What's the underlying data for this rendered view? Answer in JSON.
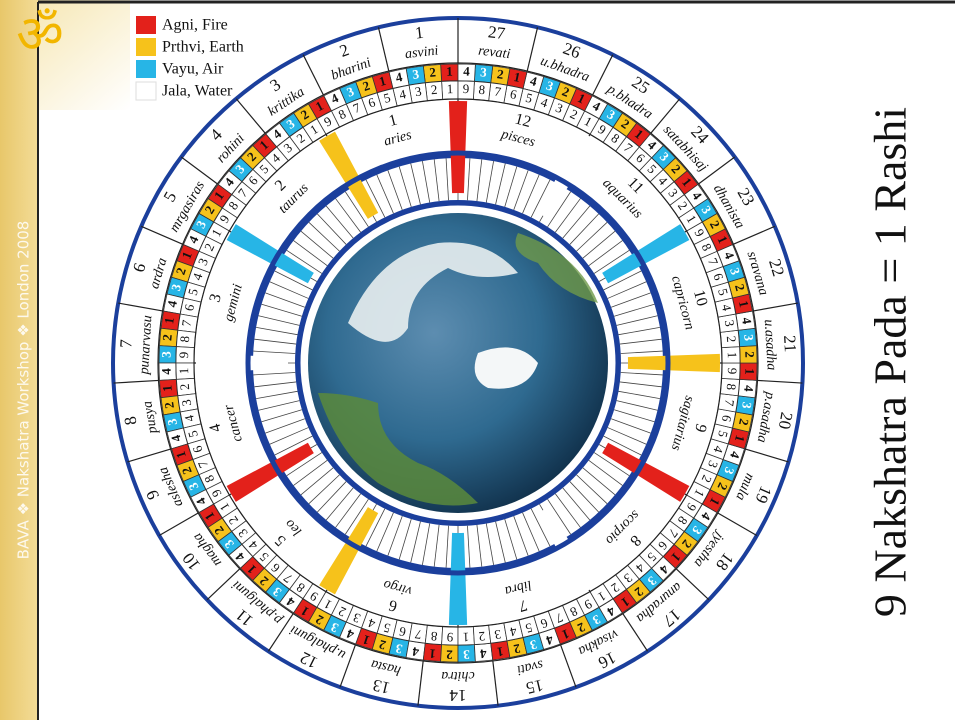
{
  "slide": {
    "title": "9 Nakshatra Pada = 1 Rashi",
    "side_text": "BAVA ❖ Nakshatra Workshop ❖ London 2008",
    "logo": "ॐ"
  },
  "legend": [
    {
      "label": "Agni, Fire",
      "color": "#e3211b"
    },
    {
      "label": "Prthvi, Earth",
      "color": "#f6c21b"
    },
    {
      "label": "Vayu, Air",
      "color": "#27b5e6"
    },
    {
      "label": "Jala, Water",
      "color": "#ffffff"
    }
  ],
  "nakshatras": [
    {
      "number": 1,
      "name": "asvini"
    },
    {
      "number": 2,
      "name": "bharini"
    },
    {
      "number": 3,
      "name": "krittika"
    },
    {
      "number": 4,
      "name": "rohini"
    },
    {
      "number": 5,
      "name": "mrgasiras"
    },
    {
      "number": 6,
      "name": "ardra"
    },
    {
      "number": 7,
      "name": "punarvasu"
    },
    {
      "number": 8,
      "name": "pusya"
    },
    {
      "number": 9,
      "name": "aslesha"
    },
    {
      "number": 10,
      "name": "magha"
    },
    {
      "number": 11,
      "name": "p.phalguni"
    },
    {
      "number": 12,
      "name": "u.phalguni"
    },
    {
      "number": 13,
      "name": "hasta"
    },
    {
      "number": 14,
      "name": "chitra"
    },
    {
      "number": 15,
      "name": "svati"
    },
    {
      "number": 16,
      "name": "visakha"
    },
    {
      "number": 17,
      "name": "anuradha"
    },
    {
      "number": 18,
      "name": "jyestha"
    },
    {
      "number": 19,
      "name": "mula"
    },
    {
      "number": 20,
      "name": "p.asadha"
    },
    {
      "number": 21,
      "name": "u.asadha"
    },
    {
      "number": 22,
      "name": "sravana"
    },
    {
      "number": 23,
      "name": "dhanista"
    },
    {
      "number": 24,
      "name": "satabhisaj"
    },
    {
      "number": 25,
      "name": "p.bhadra"
    },
    {
      "number": 26,
      "name": "u.bhadra"
    },
    {
      "number": 27,
      "name": "revati"
    }
  ],
  "rashis": [
    {
      "number": 1,
      "name": "aries"
    },
    {
      "number": 2,
      "name": "taurus"
    },
    {
      "number": 3,
      "name": "gemini"
    },
    {
      "number": 4,
      "name": "cancer"
    },
    {
      "number": 5,
      "name": "leo"
    },
    {
      "number": 6,
      "name": "virgo"
    },
    {
      "number": 7,
      "name": "libra"
    },
    {
      "number": 8,
      "name": "scorpio"
    },
    {
      "number": 9,
      "name": "sagitarius"
    },
    {
      "number": 10,
      "name": "capricorn"
    },
    {
      "number": 11,
      "name": "aquarius"
    },
    {
      "number": 12,
      "name": "pisces"
    }
  ],
  "pada_labels": [
    1,
    2,
    3,
    4
  ],
  "navamsha_labels": [
    1,
    2,
    3,
    4,
    5,
    6,
    7,
    8,
    9
  ]
}
